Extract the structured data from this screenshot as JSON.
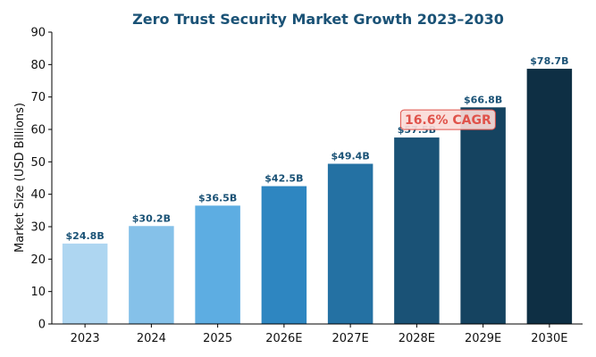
{
  "chart_data": {
    "type": "bar",
    "title": "Zero Trust Security Market Growth 2023–2030",
    "ylabel": "Market Size (USD Billions)",
    "xlabel": "",
    "categories": [
      "2023",
      "2024",
      "2025",
      "2026E",
      "2027E",
      "2028E",
      "2029E",
      "2030E"
    ],
    "values": [
      24.8,
      30.2,
      36.5,
      42.5,
      49.4,
      57.5,
      66.8,
      78.7
    ],
    "value_labels": [
      "$24.8B",
      "$30.2B",
      "$36.5B",
      "$42.5B",
      "$49.4B",
      "$57.5B",
      "$66.8B",
      "$78.7B"
    ],
    "ylim": [
      0,
      90
    ],
    "yticks": [
      "0",
      "10",
      "20",
      "30",
      "40",
      "50",
      "60",
      "70",
      "80",
      "90"
    ],
    "grid": false,
    "annotation": {
      "text": "16.6% CAGR",
      "x_category": "2028E",
      "y": 63,
      "text_color": "#e0524a",
      "bg_color": "#fadbd8",
      "border_color": "#e0524a"
    },
    "colors": {
      "bars": [
        "#aed6f1",
        "#85c1e9",
        "#5dade2",
        "#2e86c1",
        "#2471a3",
        "#1a5276",
        "#154360",
        "#0e2f44"
      ],
      "value_label": "#1a5276",
      "title": "#1a5276",
      "axis": "#000000"
    }
  }
}
